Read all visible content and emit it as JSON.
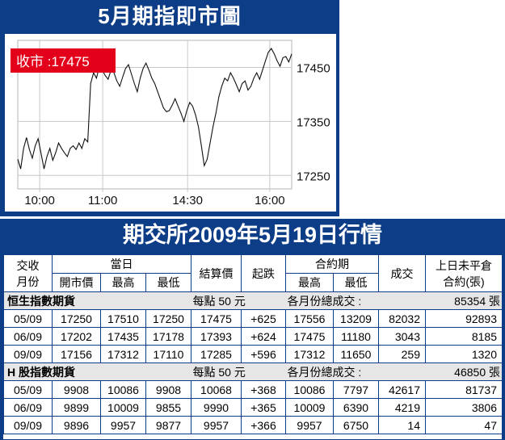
{
  "chart_panel": {
    "title": "5月期指即市圖",
    "close_label": "收市 :17475"
  },
  "chart_data": {
    "type": "line",
    "title": "5月期指即市圖",
    "x_ticks": [
      "10:00",
      "11:00",
      "14:30",
      "16:00"
    ],
    "y_ticks": [
      17250,
      17350,
      17450
    ],
    "ylim": [
      17225,
      17500
    ],
    "annotation": "收市 :17475",
    "series": [
      {
        "values": [
          17280,
          17262,
          17300,
          17320,
          17298,
          17282,
          17305,
          17318,
          17290,
          17262,
          17285,
          17300,
          17278,
          17292,
          17310,
          17300,
          17292,
          17285,
          17300,
          17305,
          17298,
          17310,
          17300,
          17318,
          17312,
          17420,
          17440,
          17430,
          17452,
          17445,
          17435,
          17428,
          17445,
          17440,
          17425,
          17415,
          17432,
          17448,
          17455,
          17438,
          17420,
          17405,
          17430,
          17448,
          17458,
          17445,
          17430,
          17420,
          17405,
          17390,
          17375,
          17368,
          17370,
          17380,
          17392,
          17378,
          17365,
          17350,
          17370,
          17385,
          17378,
          17362,
          17340,
          17305,
          17268,
          17280,
          17310,
          17340,
          17365,
          17395,
          17415,
          17430,
          17425,
          17440,
          17430,
          17418,
          17405,
          17420,
          17425,
          17408,
          17415,
          17430,
          17440,
          17428,
          17445,
          17462,
          17478,
          17485,
          17475,
          17462,
          17452,
          17468,
          17470,
          17460,
          17475
        ]
      }
    ]
  },
  "table_panel": {
    "title": "期交所2009年5月19日行情",
    "header": {
      "month_col": "交收\n月份",
      "day_group": "當日",
      "open": "開市價",
      "high": "最高",
      "low": "最低",
      "settle": "結算價",
      "change": "起跌",
      "contract_group": "合約期",
      "c_high": "最高",
      "c_low": "最低",
      "volume": "成交",
      "oi": "上日未平倉\n合約(張)"
    },
    "sections": [
      {
        "name": "恒生指數期貨",
        "point": "每點 50 元",
        "total_label": "各月份總成交 :",
        "total": "85354 張",
        "rows": [
          [
            "05/09",
            "17250",
            "17510",
            "17250",
            "17475",
            "+625",
            "17556",
            "13209",
            "82032",
            "92893"
          ],
          [
            "06/09",
            "17202",
            "17435",
            "17178",
            "17393",
            "+624",
            "17475",
            "11180",
            "3043",
            "8185"
          ],
          [
            "09/09",
            "17156",
            "17312",
            "17110",
            "17285",
            "+596",
            "17312",
            "11650",
            "259",
            "1320"
          ]
        ]
      },
      {
        "name": "H 股指數期貨",
        "point": "每點 50 元",
        "total_label": "各月份總成交 :",
        "total": "46850 張",
        "rows": [
          [
            "05/09",
            "9908",
            "10086",
            "9908",
            "10068",
            "+368",
            "10086",
            "7797",
            "42617",
            "81737"
          ],
          [
            "06/09",
            "9899",
            "10009",
            "9855",
            "9990",
            "+365",
            "10009",
            "6390",
            "4219",
            "3806"
          ],
          [
            "09/09",
            "9896",
            "9957",
            "9877",
            "9957",
            "+366",
            "9957",
            "6750",
            "14",
            "47"
          ]
        ]
      }
    ]
  },
  "colors": {
    "panel_bg": "#0d3d86",
    "annotation_bg": "#e2001a",
    "section_bg": "#e6e6e6"
  }
}
